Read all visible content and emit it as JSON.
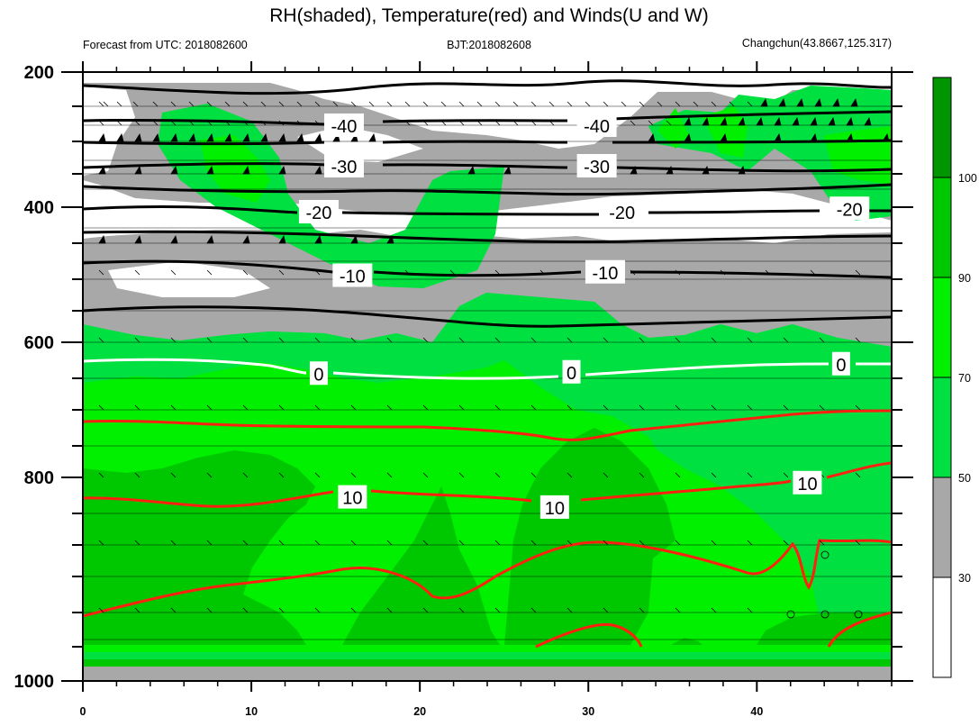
{
  "title": "RH(shaded), Temperature(red) and Winds(U and W)",
  "left_subtitle": "Forecast from UTC: 2018082600",
  "center_subtitle": "BJT:2018082608",
  "right_subtitle": "Changchun(43.8667,125.317)",
  "chart_data": {
    "type": "contour",
    "title": "RH(shaded), Temperature(red) and Winds(U and W)",
    "x_axis": {
      "range": [
        0,
        48
      ],
      "ticks": [
        0,
        10,
        20,
        30,
        40
      ]
    },
    "y_axis": {
      "range": [
        1000,
        200
      ],
      "ticks": [
        200,
        400,
        600,
        800,
        1000
      ],
      "reversed": true
    },
    "colorbar": {
      "levels": [
        30,
        50,
        70,
        90,
        100
      ],
      "colors": [
        "#ffffff",
        "#a8a8a8",
        "#00e040",
        "#00f000",
        "#00c800",
        "#009600"
      ],
      "position": "right"
    },
    "temperature_contours": [
      {
        "label": "-40",
        "color": "#000000",
        "label_positions": [
          [
            15.5,
            280
          ],
          [
            30.5,
            280
          ]
        ]
      },
      {
        "label": "-30",
        "color": "#000000",
        "label_positions": [
          [
            15.5,
            340
          ],
          [
            30.5,
            340
          ]
        ]
      },
      {
        "label": "-20",
        "color": "#000000",
        "label_positions": [
          [
            14,
            408
          ],
          [
            32,
            408
          ],
          [
            45.5,
            403
          ]
        ]
      },
      {
        "label": "-10",
        "color": "#000000",
        "label_positions": [
          [
            16,
            502
          ],
          [
            31,
            497
          ]
        ]
      },
      {
        "label": "0",
        "color": "#ffffff",
        "label_positions": [
          [
            14,
            647
          ],
          [
            29,
            645
          ],
          [
            45,
            633
          ]
        ]
      },
      {
        "label": "10",
        "color": "#ff2010",
        "label_positions": [
          [
            16,
            820
          ],
          [
            28,
            830
          ],
          [
            43,
            806
          ]
        ]
      }
    ]
  }
}
